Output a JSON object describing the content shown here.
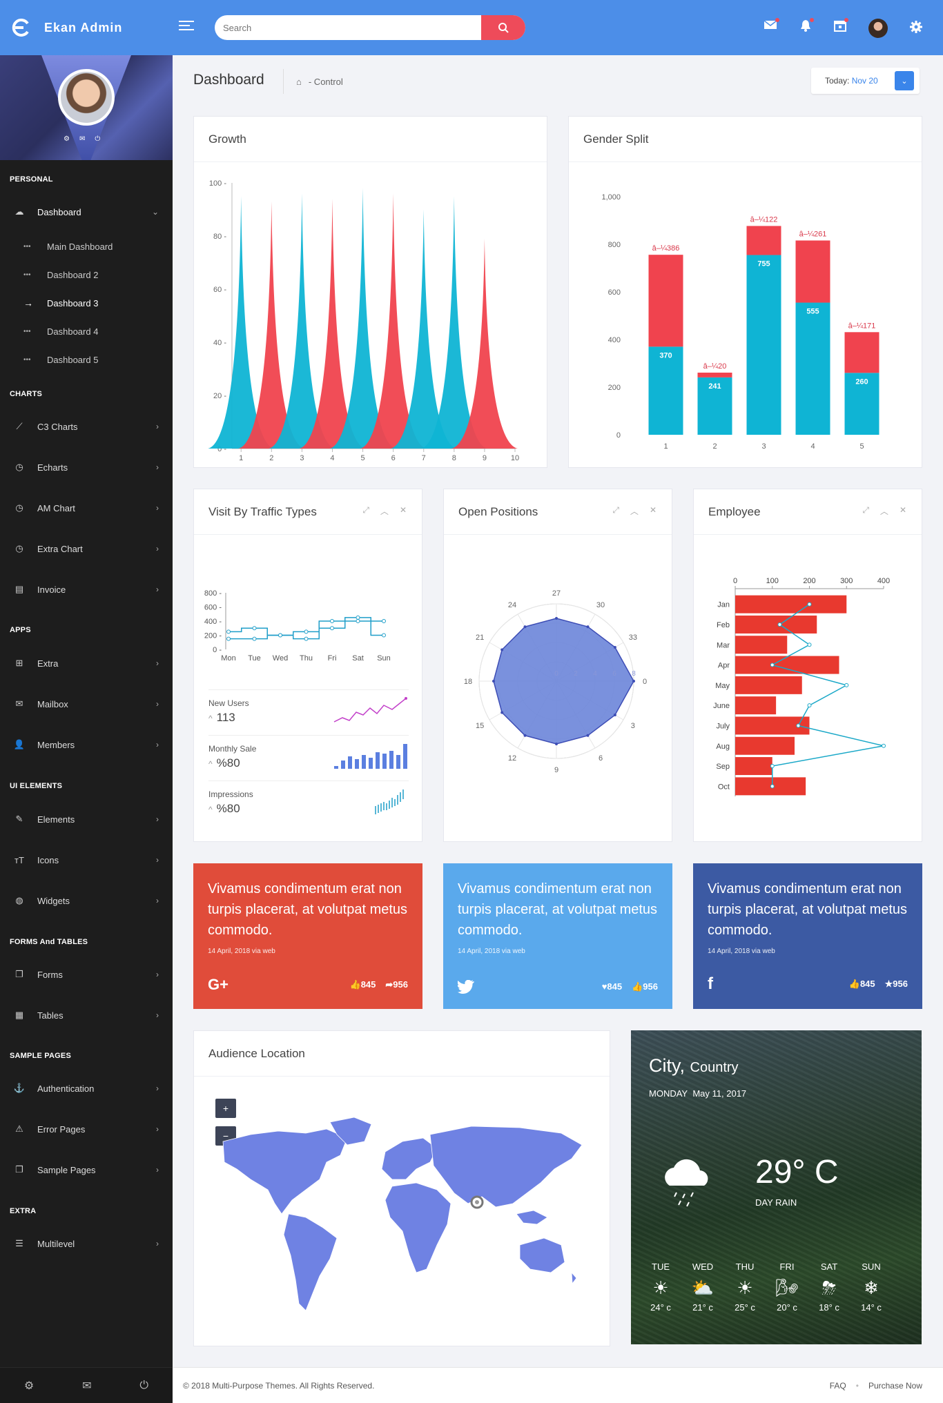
{
  "app": {
    "title": "Ekan Admin"
  },
  "search": {
    "placeholder": "Search"
  },
  "sidebar": {
    "sections": [
      "PERSONAL",
      "CHARTS",
      "APPS",
      "UI ELEMENTS",
      "FORMS And TABLES",
      "SAMPLE PAGES",
      "EXTRA"
    ],
    "dashboard": "Dashboard",
    "dashboard_sub": [
      "Main Dashboard",
      "Dashboard 2",
      "Dashboard 3",
      "Dashboard 4",
      "Dashboard 5"
    ],
    "charts": [
      "C3 Charts",
      "Echarts",
      "AM Chart",
      "Extra Chart",
      "Invoice"
    ],
    "apps": [
      "Extra",
      "Mailbox",
      "Members"
    ],
    "ui": [
      "Elements",
      "Icons",
      "Widgets"
    ],
    "forms": [
      "Forms",
      "Tables"
    ],
    "sample": [
      "Authentication",
      "Error Pages",
      "Sample Pages"
    ],
    "extra": [
      "Multilevel"
    ]
  },
  "header": {
    "title": "Dashboard",
    "crumb": "- Control",
    "today_label": "Today:",
    "today_value": "Nov 20"
  },
  "growth": {
    "title": "Growth",
    "chart_data": {
      "type": "area",
      "x": [
        1,
        2,
        3,
        4,
        5,
        6,
        7,
        8,
        9,
        10
      ],
      "ylim": [
        0,
        100
      ],
      "yticks": [
        0,
        20,
        40,
        60,
        80,
        100
      ],
      "peaks": [
        {
          "x": 1,
          "y": 95,
          "color": "#0fb4d4"
        },
        {
          "x": 2,
          "y": 93,
          "color": "#f0434e"
        },
        {
          "x": 3,
          "y": 96,
          "color": "#0fb4d4"
        },
        {
          "x": 4,
          "y": 94,
          "color": "#f0434e"
        },
        {
          "x": 5,
          "y": 98,
          "color": "#0fb4d4"
        },
        {
          "x": 6,
          "y": 96,
          "color": "#f0434e"
        },
        {
          "x": 7,
          "y": 90,
          "color": "#0fb4d4"
        },
        {
          "x": 8,
          "y": 95,
          "color": "#0fb4d4"
        },
        {
          "x": 9,
          "y": 79,
          "color": "#f0434e"
        }
      ]
    }
  },
  "gender": {
    "title": "Gender Split",
    "chart_data": {
      "type": "bar",
      "categories": [
        "1",
        "2",
        "3",
        "4",
        "5"
      ],
      "ylim": [
        0,
        1000
      ],
      "yticks": [
        "0",
        "200",
        "400",
        "600",
        "800",
        "1,000"
      ],
      "series": [
        {
          "values": [
            370,
            241,
            755,
            555,
            260
          ],
          "color": "#0fb4d4"
        },
        {
          "values": [
            386,
            20,
            122,
            261,
            171
          ],
          "color": "#f0434e"
        }
      ],
      "bottom_labels": [
        "370",
        "241",
        "755",
        "555",
        "260"
      ],
      "top_labels": [
        "â–¼386",
        "â–¼20",
        "â–¼122",
        "â–¼261",
        "â–¼171"
      ]
    }
  },
  "traffic": {
    "title": "Visit By Traffic Types",
    "chart_data": {
      "type": "line",
      "categories": [
        "Mon",
        "Tue",
        "Wed",
        "Thu",
        "Fri",
        "Sat",
        "Sun"
      ],
      "yticks": [
        "0",
        "200",
        "400",
        "600",
        "800"
      ],
      "ylim": [
        0,
        800
      ],
      "series": [
        {
          "values": [
            250,
            300,
            200,
            250,
            400,
            400,
            200
          ],
          "color": "#1f9ec9"
        },
        {
          "values": [
            150,
            150,
            200,
            150,
            300,
            450,
            400
          ],
          "color": "#1f9ec9"
        }
      ]
    },
    "stats": [
      {
        "label": "New Users",
        "value": "113"
      },
      {
        "label": "Monthly Sale",
        "value": "%80"
      },
      {
        "label": "Impressions",
        "value": "%80"
      }
    ]
  },
  "positions": {
    "title": "Open Positions",
    "chart_data": {
      "type": "radar",
      "angle_labels": [
        "0",
        "3",
        "6",
        "9",
        "12",
        "15",
        "18",
        "21",
        "24",
        "27",
        "30",
        "33"
      ],
      "radial_ticks": [
        "0",
        "2",
        "4",
        "6",
        "8"
      ],
      "rmax": 8,
      "values": [
        8,
        7,
        6.5,
        6.5,
        6.5,
        6.5,
        6.5,
        6.5,
        6.5,
        6.5,
        6.5,
        7
      ]
    }
  },
  "employee": {
    "title": "Employee",
    "chart_data": {
      "type": "bar",
      "categories": [
        "Jan",
        "Feb",
        "Mar",
        "Apr",
        "May",
        "June",
        "July",
        "Aug",
        "Sep",
        "Oct"
      ],
      "xticks": [
        "0",
        "100",
        "200",
        "300",
        "400"
      ],
      "xlim": [
        0,
        400
      ],
      "bars": [
        300,
        220,
        140,
        280,
        180,
        110,
        200,
        160,
        100,
        190
      ],
      "line": [
        200,
        120,
        200,
        100,
        300,
        200,
        170,
        400,
        100,
        100
      ]
    }
  },
  "social": [
    {
      "text": "Vivamus condimentum erat non turpis placerat, at volutpat metus commodo.",
      "meta": "14 April, 2018 via web",
      "a": "845",
      "b": "956",
      "color": "#e04c3a"
    },
    {
      "text": "Vivamus condimentum erat non turpis placerat, at volutpat metus commodo.",
      "meta": "14 April, 2018 via web",
      "a": "845",
      "b": "956",
      "color": "#5aa9ec"
    },
    {
      "text": "Vivamus condimentum erat non turpis placerat, at volutpat metus commodo.",
      "meta": "14 April, 2018 via web",
      "a": "845",
      "b": "956",
      "color": "#3c5aa3"
    }
  ],
  "map": {
    "title": "Audience Location",
    "zoom_in": "+",
    "zoom_out": "−"
  },
  "weather": {
    "city": "City,",
    "country": "Country",
    "day": "MONDAY",
    "date": "May 11, 2017",
    "temp": "29° C",
    "desc": "DAY RAIN",
    "days": [
      {
        "name": "TUE",
        "temp": "24° c",
        "icon": "sun-icon"
      },
      {
        "name": "WED",
        "temp": "21° c",
        "icon": "cloud-sun-icon"
      },
      {
        "name": "THU",
        "temp": "25° c",
        "icon": "sun-icon"
      },
      {
        "name": "FRI",
        "temp": "20° c",
        "icon": "wind-sun-icon"
      },
      {
        "name": "SAT",
        "temp": "18° c",
        "icon": "storm-sun-icon"
      },
      {
        "name": "SUN",
        "temp": "14° c",
        "icon": "snow-sun-icon"
      }
    ]
  },
  "footer": {
    "copy": "© 2018 Multi-Purpose Themes. All Rights Reserved.",
    "faq": "FAQ",
    "purchase": "Purchase Now"
  }
}
